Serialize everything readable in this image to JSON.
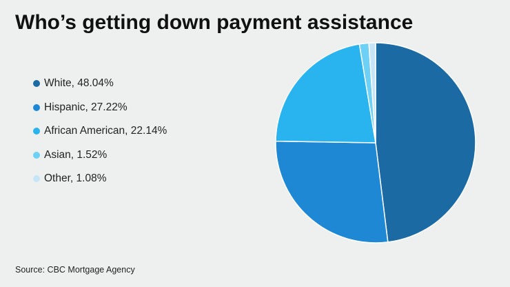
{
  "title": "Who’s getting down payment assistance",
  "source": "Source: CBC Mortgage Agency",
  "chart_data": {
    "type": "pie",
    "title": "Who’s getting down payment assistance",
    "slices": [
      {
        "label": "White",
        "value": 48.04,
        "legend": "White, 48.04%",
        "color": "#1b6aa3"
      },
      {
        "label": "Hispanic",
        "value": 27.22,
        "legend": "Hispanic, 27.22%",
        "color": "#1e88d4"
      },
      {
        "label": "African American",
        "value": 22.14,
        "legend": "African American, 22.14%",
        "color": "#29b3ef"
      },
      {
        "label": "Asian",
        "value": 1.52,
        "legend": "Asian, 1.52%",
        "color": "#6fd0f5"
      },
      {
        "label": "Other",
        "value": 1.08,
        "legend": "Other, 1.08%",
        "color": "#c6e6f8"
      }
    ],
    "start_angle": "12 o'clock, clockwise",
    "legend_position": "left"
  }
}
